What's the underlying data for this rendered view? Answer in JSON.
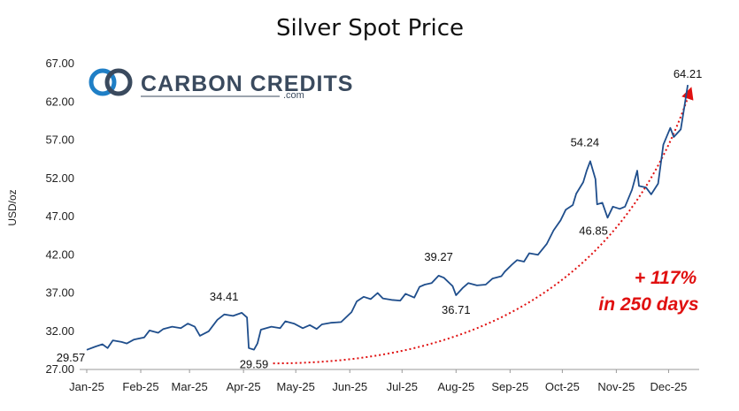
{
  "chart_data": {
    "type": "line",
    "title": "Silver Spot Price",
    "ylabel": "USD/oz",
    "xlabel": "",
    "ylim": [
      27.0,
      67.0
    ],
    "yticks": [
      "27.00",
      "32.00",
      "37.00",
      "42.00",
      "47.00",
      "52.00",
      "57.00",
      "62.00",
      "67.00"
    ],
    "ytick_values": [
      27,
      32,
      37,
      42,
      47,
      52,
      57,
      62,
      67
    ],
    "xticks": [
      "Jan-25",
      "Feb-25",
      "Mar-25",
      "Apr-25",
      "May-25",
      "Jun-25",
      "Jul-25",
      "Aug-25",
      "Sep-25",
      "Oct-25",
      "Nov-25",
      "Dec-25"
    ],
    "x_start": "2025-01-01",
    "x_end": "2025-12-15",
    "grid": false,
    "series": [
      {
        "color": "#1f4e8c",
        "points": [
          [
            "2025-01-01",
            29.57
          ],
          [
            "2025-01-06",
            30.0
          ],
          [
            "2025-01-10",
            30.3
          ],
          [
            "2025-01-13",
            29.8
          ],
          [
            "2025-01-16",
            30.8
          ],
          [
            "2025-01-21",
            30.6
          ],
          [
            "2025-01-24",
            30.4
          ],
          [
            "2025-01-28",
            30.9
          ],
          [
            "2025-02-03",
            31.2
          ],
          [
            "2025-02-06",
            32.1
          ],
          [
            "2025-02-11",
            31.8
          ],
          [
            "2025-02-14",
            32.3
          ],
          [
            "2025-02-19",
            32.6
          ],
          [
            "2025-02-24",
            32.4
          ],
          [
            "2025-02-28",
            33.0
          ],
          [
            "2025-03-04",
            32.6
          ],
          [
            "2025-03-07",
            31.4
          ],
          [
            "2025-03-12",
            32.0
          ],
          [
            "2025-03-17",
            33.5
          ],
          [
            "2025-03-21",
            34.2
          ],
          [
            "2025-03-26",
            34.0
          ],
          [
            "2025-03-31",
            34.41
          ],
          [
            "2025-04-03",
            33.8
          ],
          [
            "2025-04-04",
            29.8
          ],
          [
            "2025-04-07",
            29.59
          ],
          [
            "2025-04-09",
            30.4
          ],
          [
            "2025-04-11",
            32.2
          ],
          [
            "2025-04-17",
            32.6
          ],
          [
            "2025-04-22",
            32.4
          ],
          [
            "2025-04-25",
            33.3
          ],
          [
            "2025-04-30",
            33.0
          ],
          [
            "2025-05-05",
            32.4
          ],
          [
            "2025-05-09",
            32.8
          ],
          [
            "2025-05-13",
            32.3
          ],
          [
            "2025-05-16",
            32.9
          ],
          [
            "2025-05-21",
            33.1
          ],
          [
            "2025-05-27",
            33.2
          ],
          [
            "2025-06-02",
            34.5
          ],
          [
            "2025-06-05",
            35.9
          ],
          [
            "2025-06-09",
            36.5
          ],
          [
            "2025-06-13",
            36.2
          ],
          [
            "2025-06-17",
            37.0
          ],
          [
            "2025-06-20",
            36.3
          ],
          [
            "2025-06-25",
            36.1
          ],
          [
            "2025-06-30",
            36.0
          ],
          [
            "2025-07-03",
            36.9
          ],
          [
            "2025-07-08",
            36.4
          ],
          [
            "2025-07-11",
            37.8
          ],
          [
            "2025-07-14",
            38.1
          ],
          [
            "2025-07-18",
            38.3
          ],
          [
            "2025-07-22",
            39.27
          ],
          [
            "2025-07-25",
            39.0
          ],
          [
            "2025-07-30",
            37.9
          ],
          [
            "2025-08-01",
            36.71
          ],
          [
            "2025-08-05",
            37.7
          ],
          [
            "2025-08-08",
            38.3
          ],
          [
            "2025-08-13",
            38.0
          ],
          [
            "2025-08-18",
            38.1
          ],
          [
            "2025-08-22",
            38.9
          ],
          [
            "2025-08-27",
            39.2
          ],
          [
            "2025-08-29",
            39.8
          ],
          [
            "2025-09-02",
            40.7
          ],
          [
            "2025-09-05",
            41.3
          ],
          [
            "2025-09-09",
            41.1
          ],
          [
            "2025-09-12",
            42.2
          ],
          [
            "2025-09-17",
            42.0
          ],
          [
            "2025-09-22",
            43.4
          ],
          [
            "2025-09-26",
            45.2
          ],
          [
            "2025-09-30",
            46.5
          ],
          [
            "2025-10-03",
            47.9
          ],
          [
            "2025-10-07",
            48.5
          ],
          [
            "2025-10-09",
            50.0
          ],
          [
            "2025-10-13",
            51.5
          ],
          [
            "2025-10-15",
            53.0
          ],
          [
            "2025-10-17",
            54.24
          ],
          [
            "2025-10-20",
            51.9
          ],
          [
            "2025-10-21",
            48.6
          ],
          [
            "2025-10-24",
            48.8
          ],
          [
            "2025-10-27",
            46.85
          ],
          [
            "2025-10-30",
            48.3
          ],
          [
            "2025-11-03",
            48.0
          ],
          [
            "2025-11-06",
            48.3
          ],
          [
            "2025-11-10",
            50.5
          ],
          [
            "2025-11-13",
            53.0
          ],
          [
            "2025-11-14",
            51.0
          ],
          [
            "2025-11-18",
            50.8
          ],
          [
            "2025-11-21",
            49.9
          ],
          [
            "2025-11-25",
            51.3
          ],
          [
            "2025-11-28",
            56.4
          ],
          [
            "2025-12-02",
            58.6
          ],
          [
            "2025-12-04",
            57.4
          ],
          [
            "2025-12-08",
            58.4
          ],
          [
            "2025-12-10",
            61.3
          ],
          [
            "2025-12-12",
            64.21
          ]
        ]
      }
    ],
    "annotations": [
      {
        "text": "29.57",
        "x": "2025-01-01",
        "y": 29.57
      },
      {
        "text": "34.41",
        "x": "2025-03-31",
        "y": 34.41
      },
      {
        "text": "29.59",
        "x": "2025-04-07",
        "y": 29.59
      },
      {
        "text": "39.27",
        "x": "2025-07-22",
        "y": 39.27
      },
      {
        "text": "36.71",
        "x": "2025-08-01",
        "y": 36.71
      },
      {
        "text": "54.24",
        "x": "2025-10-17",
        "y": 54.24
      },
      {
        "text": "46.85",
        "x": "2025-10-27",
        "y": 46.85
      },
      {
        "text": "64.21",
        "x": "2025-12-12",
        "y": 64.21
      }
    ],
    "growth_arrow": {
      "color": "#e01010",
      "from": [
        "2025-04-18",
        27.8
      ],
      "to": [
        "2025-12-13",
        63.2
      ]
    },
    "note_lines": [
      "+ 117%",
      "in 250 days"
    ]
  },
  "logo": {
    "name": "CARBON CREDITS",
    "suffix": ".com",
    "color": "#3a4a5e",
    "accent": "#1f7fc6"
  }
}
